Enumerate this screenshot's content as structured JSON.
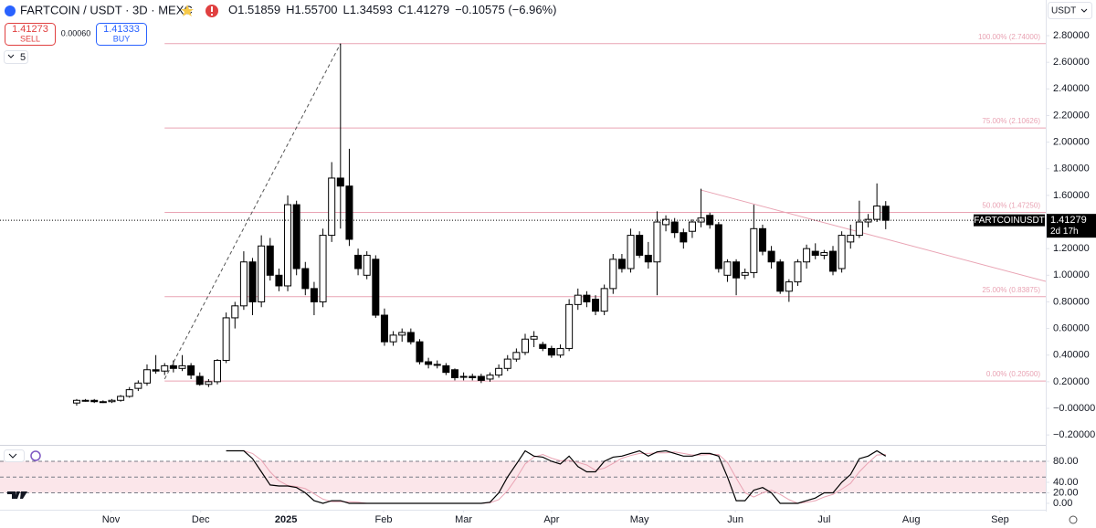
{
  "header": {
    "symbol": "FARTCOIN / USDT · 3D · MEXC",
    "ohlc": [
      {
        "key": "O",
        "value": "1.51859"
      },
      {
        "key": "H",
        "value": "1.55700"
      },
      {
        "key": "L",
        "value": "1.34593"
      },
      {
        "key": "C",
        "value": "1.41279"
      }
    ],
    "change": "−0.10575 (−6.96%)",
    "sell": {
      "price": "1.41273",
      "label": "SELL"
    },
    "spread": "0.00060",
    "buy": {
      "price": "1.41333",
      "label": "BUY"
    },
    "indicators_count": "5",
    "currency": "USDT",
    "price_tag": {
      "symbol": "FARTCOINUSDT",
      "price": "1.41279",
      "countdown": "2d 17h"
    }
  },
  "chart_data": [
    {
      "type": "candlestick",
      "xlim": [
        -8.72,
        110.2
      ],
      "xticks": [
        {
          "value": 3.9,
          "label": "Nov"
        },
        {
          "value": 14.1,
          "label": "Dec"
        },
        {
          "value": 23.8,
          "label": "2025"
        },
        {
          "value": 34.9,
          "label": "Feb"
        },
        {
          "value": 44.0,
          "label": "Mar"
        },
        {
          "value": 54.0,
          "label": "Apr"
        },
        {
          "value": 64.0,
          "label": "May"
        },
        {
          "value": 74.9,
          "label": "Jun"
        },
        {
          "value": 85.0,
          "label": "Jul"
        },
        {
          "value": 94.9,
          "label": "Aug"
        },
        {
          "value": 105.0,
          "label": "Sep"
        }
      ],
      "ylim": [
        -0.2745,
        3.068
      ],
      "yticks": [
        {
          "value": 2.8,
          "label": "2.80000"
        },
        {
          "value": 2.6,
          "label": "2.60000"
        },
        {
          "value": 2.4,
          "label": "2.40000"
        },
        {
          "value": 2.2,
          "label": "2.20000"
        },
        {
          "value": 2.0,
          "label": "2.00000"
        },
        {
          "value": 1.8,
          "label": "1.80000"
        },
        {
          "value": 1.6,
          "label": "1.60000"
        },
        {
          "value": 1.2,
          "label": "1.20000"
        },
        {
          "value": 1.0,
          "label": "1.00000"
        },
        {
          "value": 0.8,
          "label": "0.80000"
        },
        {
          "value": 0.6,
          "label": "0.60000"
        },
        {
          "value": 0.4,
          "label": "0.40000"
        },
        {
          "value": 0.2,
          "label": "0.20000"
        },
        {
          "value": 0,
          "label": "−0.00000"
        },
        {
          "value": -0.2,
          "label": "−0.20000"
        }
      ],
      "grid": false,
      "up_color": "#ffffff",
      "down_color": "#000000",
      "last_price": 1.41279,
      "open": [
        0.04,
        0.06,
        0.06,
        0.05,
        0.05,
        0.06,
        0.09,
        0.15,
        0.19,
        0.29,
        0.28,
        0.32,
        0.3,
        0.32,
        0.24,
        0.18,
        0.2,
        0.36,
        0.68,
        0.77,
        1.1,
        0.8,
        1.22,
        1.0,
        0.92,
        1.53,
        1.05,
        0.9,
        0.8,
        1.3,
        1.73,
        1.67,
        1.15,
        1.0,
        1.12,
        0.7,
        0.5,
        0.55,
        0.57,
        0.5,
        0.35,
        0.33,
        0.32,
        0.29,
        0.24,
        0.24,
        0.24,
        0.22,
        0.25,
        0.3,
        0.37,
        0.42,
        0.52,
        0.48,
        0.45,
        0.4,
        0.45,
        0.78,
        0.85,
        0.82,
        0.73,
        0.9,
        1.12,
        1.05,
        1.3,
        1.15,
        1.1,
        1.38,
        1.4,
        1.32,
        1.33,
        1.4,
        1.45,
        1.38,
        1.0,
        1.1,
        1.0,
        1.02,
        1.35,
        1.18,
        1.1,
        0.88,
        0.95,
        1.1,
        1.18,
        1.15,
        1.18,
        1.05,
        1.25,
        1.3,
        1.4,
        1.42,
        1.51859
      ],
      "high": [
        0.07,
        0.07,
        0.07,
        0.06,
        0.07,
        0.1,
        0.16,
        0.21,
        0.33,
        0.4,
        0.34,
        0.36,
        0.4,
        0.34,
        0.27,
        0.22,
        0.37,
        0.72,
        0.8,
        1.18,
        1.13,
        1.3,
        1.28,
        1.05,
        1.6,
        1.56,
        1.1,
        0.95,
        1.35,
        1.85,
        2.74,
        1.95,
        1.2,
        1.18,
        1.15,
        0.75,
        0.58,
        0.6,
        0.6,
        0.52,
        0.38,
        0.36,
        0.34,
        0.3,
        0.27,
        0.26,
        0.26,
        0.27,
        0.33,
        0.4,
        0.45,
        0.56,
        0.58,
        0.5,
        0.47,
        0.48,
        0.82,
        0.9,
        0.88,
        0.85,
        0.93,
        1.16,
        1.16,
        1.35,
        1.33,
        1.25,
        1.48,
        1.45,
        1.43,
        1.35,
        1.42,
        1.65,
        1.47,
        1.4,
        1.12,
        1.12,
        1.05,
        1.53,
        1.38,
        1.22,
        1.12,
        0.97,
        1.12,
        1.23,
        1.24,
        1.19,
        1.22,
        1.33,
        1.38,
        1.56,
        1.46,
        1.69,
        1.557
      ],
      "low": [
        0.02,
        0.05,
        0.04,
        0.04,
        0.04,
        0.05,
        0.08,
        0.13,
        0.17,
        0.26,
        0.25,
        0.27,
        0.28,
        0.22,
        0.17,
        0.16,
        0.18,
        0.34,
        0.6,
        0.74,
        0.7,
        0.76,
        0.96,
        0.88,
        0.88,
        1.0,
        0.85,
        0.7,
        0.76,
        1.25,
        1.35,
        1.22,
        1.0,
        0.97,
        0.68,
        0.47,
        0.47,
        0.5,
        0.48,
        0.33,
        0.3,
        0.3,
        0.25,
        0.21,
        0.21,
        0.21,
        0.19,
        0.2,
        0.23,
        0.28,
        0.35,
        0.4,
        0.46,
        0.43,
        0.38,
        0.38,
        0.43,
        0.74,
        0.76,
        0.7,
        0.7,
        0.86,
        1.02,
        1.02,
        1.13,
        1.05,
        0.85,
        1.33,
        1.28,
        1.2,
        1.28,
        1.36,
        1.35,
        1.02,
        0.95,
        0.85,
        0.97,
        0.98,
        1.15,
        1.05,
        0.86,
        0.8,
        0.92,
        1.05,
        1.12,
        1.12,
        1.0,
        1.02,
        1.2,
        1.28,
        1.36,
        1.4,
        1.34593
      ],
      "close": [
        0.06,
        0.06,
        0.05,
        0.05,
        0.06,
        0.09,
        0.14,
        0.19,
        0.29,
        0.28,
        0.32,
        0.3,
        0.32,
        0.25,
        0.18,
        0.2,
        0.36,
        0.68,
        0.77,
        1.1,
        0.8,
        1.22,
        1.0,
        0.92,
        1.53,
        1.05,
        0.9,
        0.8,
        1.3,
        1.73,
        1.67,
        1.27,
        1.05,
        1.15,
        0.7,
        0.5,
        0.55,
        0.57,
        0.5,
        0.35,
        0.33,
        0.33,
        0.27,
        0.23,
        0.24,
        0.23,
        0.21,
        0.25,
        0.3,
        0.37,
        0.42,
        0.52,
        0.54,
        0.45,
        0.4,
        0.45,
        0.78,
        0.85,
        0.8,
        0.73,
        0.9,
        1.12,
        1.05,
        1.3,
        1.15,
        1.1,
        1.4,
        1.42,
        1.32,
        1.25,
        1.4,
        1.43,
        1.38,
        1.05,
        1.1,
        0.98,
        1.02,
        1.35,
        1.18,
        1.1,
        0.88,
        0.95,
        1.1,
        1.2,
        1.15,
        1.17,
        1.03,
        1.3,
        1.3,
        1.4,
        1.42,
        1.52,
        1.41279
      ],
      "fib_anchor_x": 10,
      "fib_color": "#e9a3b3",
      "fib_levels": [
        {
          "value": 2.74,
          "label": "100.00% (2.74000)"
        },
        {
          "value": 2.10626,
          "label": "75.00% (2.10626)"
        },
        {
          "value": 1.4725,
          "label": "50.00% (1.47250)"
        },
        {
          "value": 0.83875,
          "label": "25.00% (0.83875)"
        },
        {
          "value": 0.205,
          "label": "0.00% (0.20500)"
        }
      ],
      "trendlines": [
        {
          "x": [
            10,
            30
          ],
          "y": [
            0.22,
            2.74
          ],
          "color": "#555555",
          "dashed": true
        },
        {
          "x": [
            71,
            110.2
          ],
          "y": [
            1.64,
            0.954
          ],
          "color": "#e9a3b3",
          "dashed": false
        }
      ]
    },
    {
      "type": "line",
      "xlim": [
        -8.72,
        110.2
      ],
      "ylim": [
        -15.7,
        109.6
      ],
      "yticks": [
        {
          "value": 80,
          "label": "80.00"
        },
        {
          "value": 40,
          "label": "40.00"
        },
        {
          "value": 20,
          "label": "20.00"
        },
        {
          "value": 0,
          "label": "0.00"
        }
      ],
      "levels": [
        80,
        50,
        20
      ],
      "band": [
        20,
        80
      ],
      "band_color": "#fbe6ea",
      "series": [
        {
          "color": "#000000",
          "values": [
            null,
            null,
            null,
            null,
            null,
            null,
            null,
            null,
            null,
            null,
            null,
            null,
            null,
            null,
            null,
            null,
            null,
            100,
            100,
            100,
            85,
            60,
            35,
            33,
            33,
            30,
            20,
            5,
            0,
            5,
            5,
            0,
            0,
            0,
            0,
            0,
            0,
            0,
            0,
            0,
            0,
            0,
            0,
            0,
            0,
            0,
            0,
            2,
            20,
            50,
            75,
            100,
            90,
            88,
            80,
            75,
            90,
            70,
            60,
            60,
            80,
            88,
            90,
            95,
            100,
            90,
            98,
            100,
            95,
            90,
            90,
            95,
            95,
            90,
            50,
            5,
            5,
            25,
            30,
            20,
            0,
            0,
            0,
            5,
            10,
            20,
            20,
            40,
            55,
            85,
            90,
            100,
            90
          ]
        },
        {
          "color": "#e9a3b3",
          "values": [
            null,
            null,
            null,
            null,
            null,
            null,
            null,
            null,
            null,
            null,
            null,
            null,
            null,
            null,
            null,
            null,
            null,
            null,
            null,
            100,
            95,
            82,
            60,
            43,
            34,
            32,
            28,
            18,
            8,
            3,
            3,
            3,
            2,
            0,
            0,
            0,
            0,
            0,
            0,
            0,
            0,
            0,
            0,
            0,
            0,
            0,
            0,
            1,
            7,
            24,
            48,
            75,
            88,
            93,
            86,
            81,
            82,
            78,
            73,
            63,
            67,
            76,
            86,
            91,
            95,
            95,
            96,
            96,
            98,
            95,
            92,
            92,
            93,
            93,
            78,
            48,
            20,
            12,
            20,
            25,
            17,
            7,
            0,
            2,
            5,
            12,
            17,
            27,
            38,
            60,
            77,
            92,
            93
          ]
        }
      ]
    }
  ]
}
